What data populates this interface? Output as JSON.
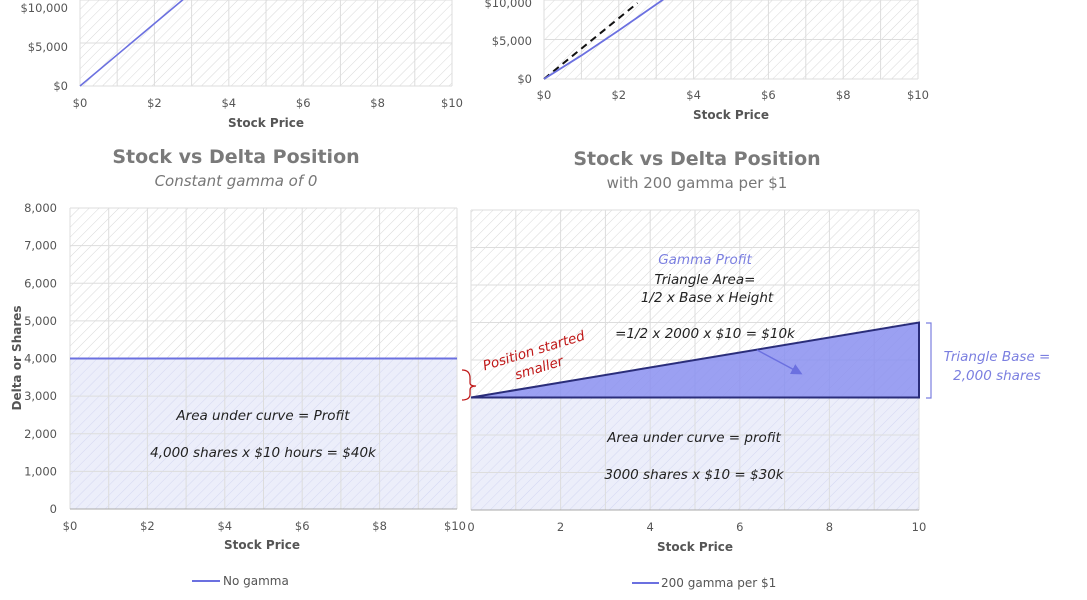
{
  "colors": {
    "series": "#6b70e0",
    "series_dark": "#2a2d7a",
    "fill": "#8a8ff0",
    "area_fill": "#eceefa",
    "annotation_red": "#c01818",
    "annotation_blue": "#7b7fe0",
    "grid": "#dddddd",
    "hatch": "#d8d8d8"
  },
  "chart_data": [
    {
      "id": "top_left",
      "type": "line",
      "title": "",
      "xlabel": "Stock Price",
      "ylabel": "",
      "xlim": [
        0,
        10
      ],
      "y_ticks_visible": [
        "$0",
        "$5,000",
        "$10,000"
      ],
      "x_ticks": [
        "$0",
        "$2",
        "$4",
        "$6",
        "$8",
        "$10"
      ],
      "grid": true,
      "series": [
        {
          "x": [
            0,
            2.8
          ],
          "y": [
            0,
            11200
          ]
        }
      ]
    },
    {
      "id": "top_right",
      "type": "line",
      "title": "",
      "xlabel": "Stock Price",
      "ylabel": "",
      "xlim": [
        0,
        10
      ],
      "y_ticks_visible": [
        "$0",
        "$5,000",
        "$10,000"
      ],
      "x_ticks": [
        "$0",
        "$2",
        "$4",
        "$6",
        "$8",
        "$10"
      ],
      "grid": true,
      "series": [
        {
          "style": "solid",
          "x": [
            0,
            1,
            2,
            3.2
          ],
          "y": [
            0,
            3100,
            6400,
            10500
          ]
        },
        {
          "style": "dashed",
          "x": [
            0,
            2.5
          ],
          "y": [
            0,
            10000
          ]
        }
      ]
    },
    {
      "id": "bottom_left",
      "type": "line",
      "title": "Stock vs Delta Position",
      "subtitle": "Constant gamma of 0",
      "xlabel": "Stock Price",
      "ylabel": "Delta or Shares",
      "xlim": [
        0,
        10
      ],
      "ylim": [
        0,
        8000
      ],
      "y_ticks": [
        "0",
        "1,000",
        "2,000",
        "3,000",
        "4,000",
        "5,000",
        "6,000",
        "7,000",
        "8,000"
      ],
      "x_ticks": [
        "$0",
        "$2",
        "$4",
        "$6",
        "$8",
        "$10"
      ],
      "grid": true,
      "legend": "bottom",
      "series": [
        {
          "name": "No gamma",
          "x": [
            0,
            10
          ],
          "y": [
            4000,
            4000
          ]
        }
      ],
      "annotations": [
        "Area under curve = Profit",
        "4,000 shares x $10 hours = $40k"
      ]
    },
    {
      "id": "bottom_right",
      "type": "area",
      "title": "Stock vs Delta Position",
      "subtitle": "with 200 gamma per $1",
      "xlabel": "Stock Price",
      "ylabel": "",
      "xlim": [
        0,
        10
      ],
      "ylim": [
        0,
        8000
      ],
      "x_ticks": [
        "0",
        "2",
        "4",
        "6",
        "8",
        "10"
      ],
      "grid": true,
      "legend": "bottom",
      "series": [
        {
          "name": "200 gamma per $1",
          "x": [
            0,
            10
          ],
          "y": [
            3000,
            5000
          ]
        }
      ],
      "annotations": {
        "gamma_profit": "Gamma Profit",
        "triangle_area_1": "Triangle Area=",
        "triangle_area_2": "1/2 x Base x Height",
        "triangle_calc": "=1/2 x 2000 x $10 = $10k",
        "base_label_1": "Triangle Base =",
        "base_label_2": "2,000 shares",
        "area_1": "Area under curve = profit",
        "area_2": "3000 shares x $10 = $30k",
        "position_1": "Position started",
        "position_2": "smaller"
      }
    }
  ]
}
